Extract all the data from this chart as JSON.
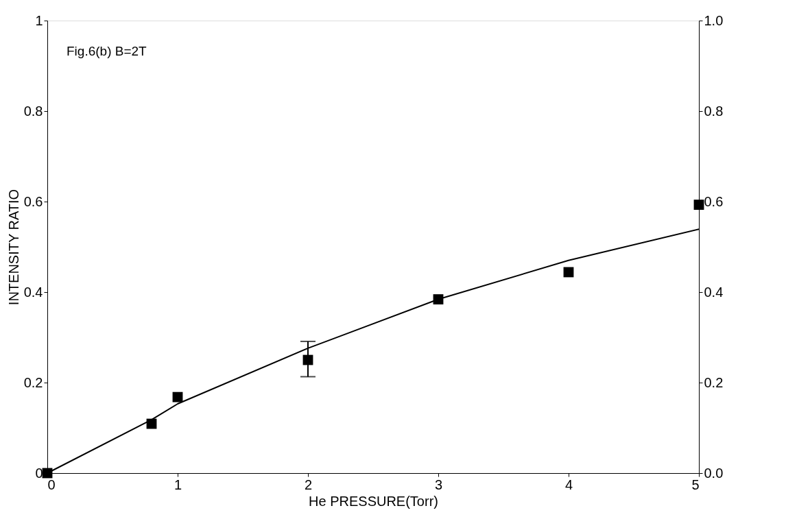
{
  "chart_data": {
    "type": "scatter",
    "xlabel": "He PRESSURE(Torr)",
    "ylabel": "INTENSITY RATIO",
    "annotations": [
      "Fig.6(b) B=2T"
    ],
    "xlim": [
      0,
      5
    ],
    "xticks": [
      0,
      1,
      2,
      3,
      4,
      5
    ],
    "ylim": [
      0,
      1
    ],
    "yticks": [
      0,
      0.2,
      0.4,
      0.6,
      0.8,
      1
    ],
    "y2lim": [
      0,
      1
    ],
    "y2ticks": [
      {
        "value": 0,
        "label": "0.0"
      },
      0.2,
      0.4,
      0.6,
      0.8,
      {
        "value": 1,
        "label": "1.0"
      }
    ],
    "grid": false,
    "series": [
      {
        "color": "#000000",
        "marker": "square",
        "x": [
          0,
          0.8,
          1,
          2,
          3,
          4,
          5
        ],
        "values": [
          0,
          0.109,
          0.168,
          0.25,
          0.384,
          0.444,
          0.593
        ],
        "errors": [
          null,
          null,
          null,
          [
            0.213,
            0.291
          ],
          null,
          null,
          null
        ]
      },
      {
        "type": "line",
        "color": "#000000",
        "marker": "none",
        "line_style": "solid",
        "x": [
          0,
          0.8,
          1,
          2,
          3,
          4,
          5
        ],
        "values": [
          0,
          0.118,
          0.153,
          0.276,
          0.384,
          0.47,
          0.539
        ]
      }
    ]
  }
}
